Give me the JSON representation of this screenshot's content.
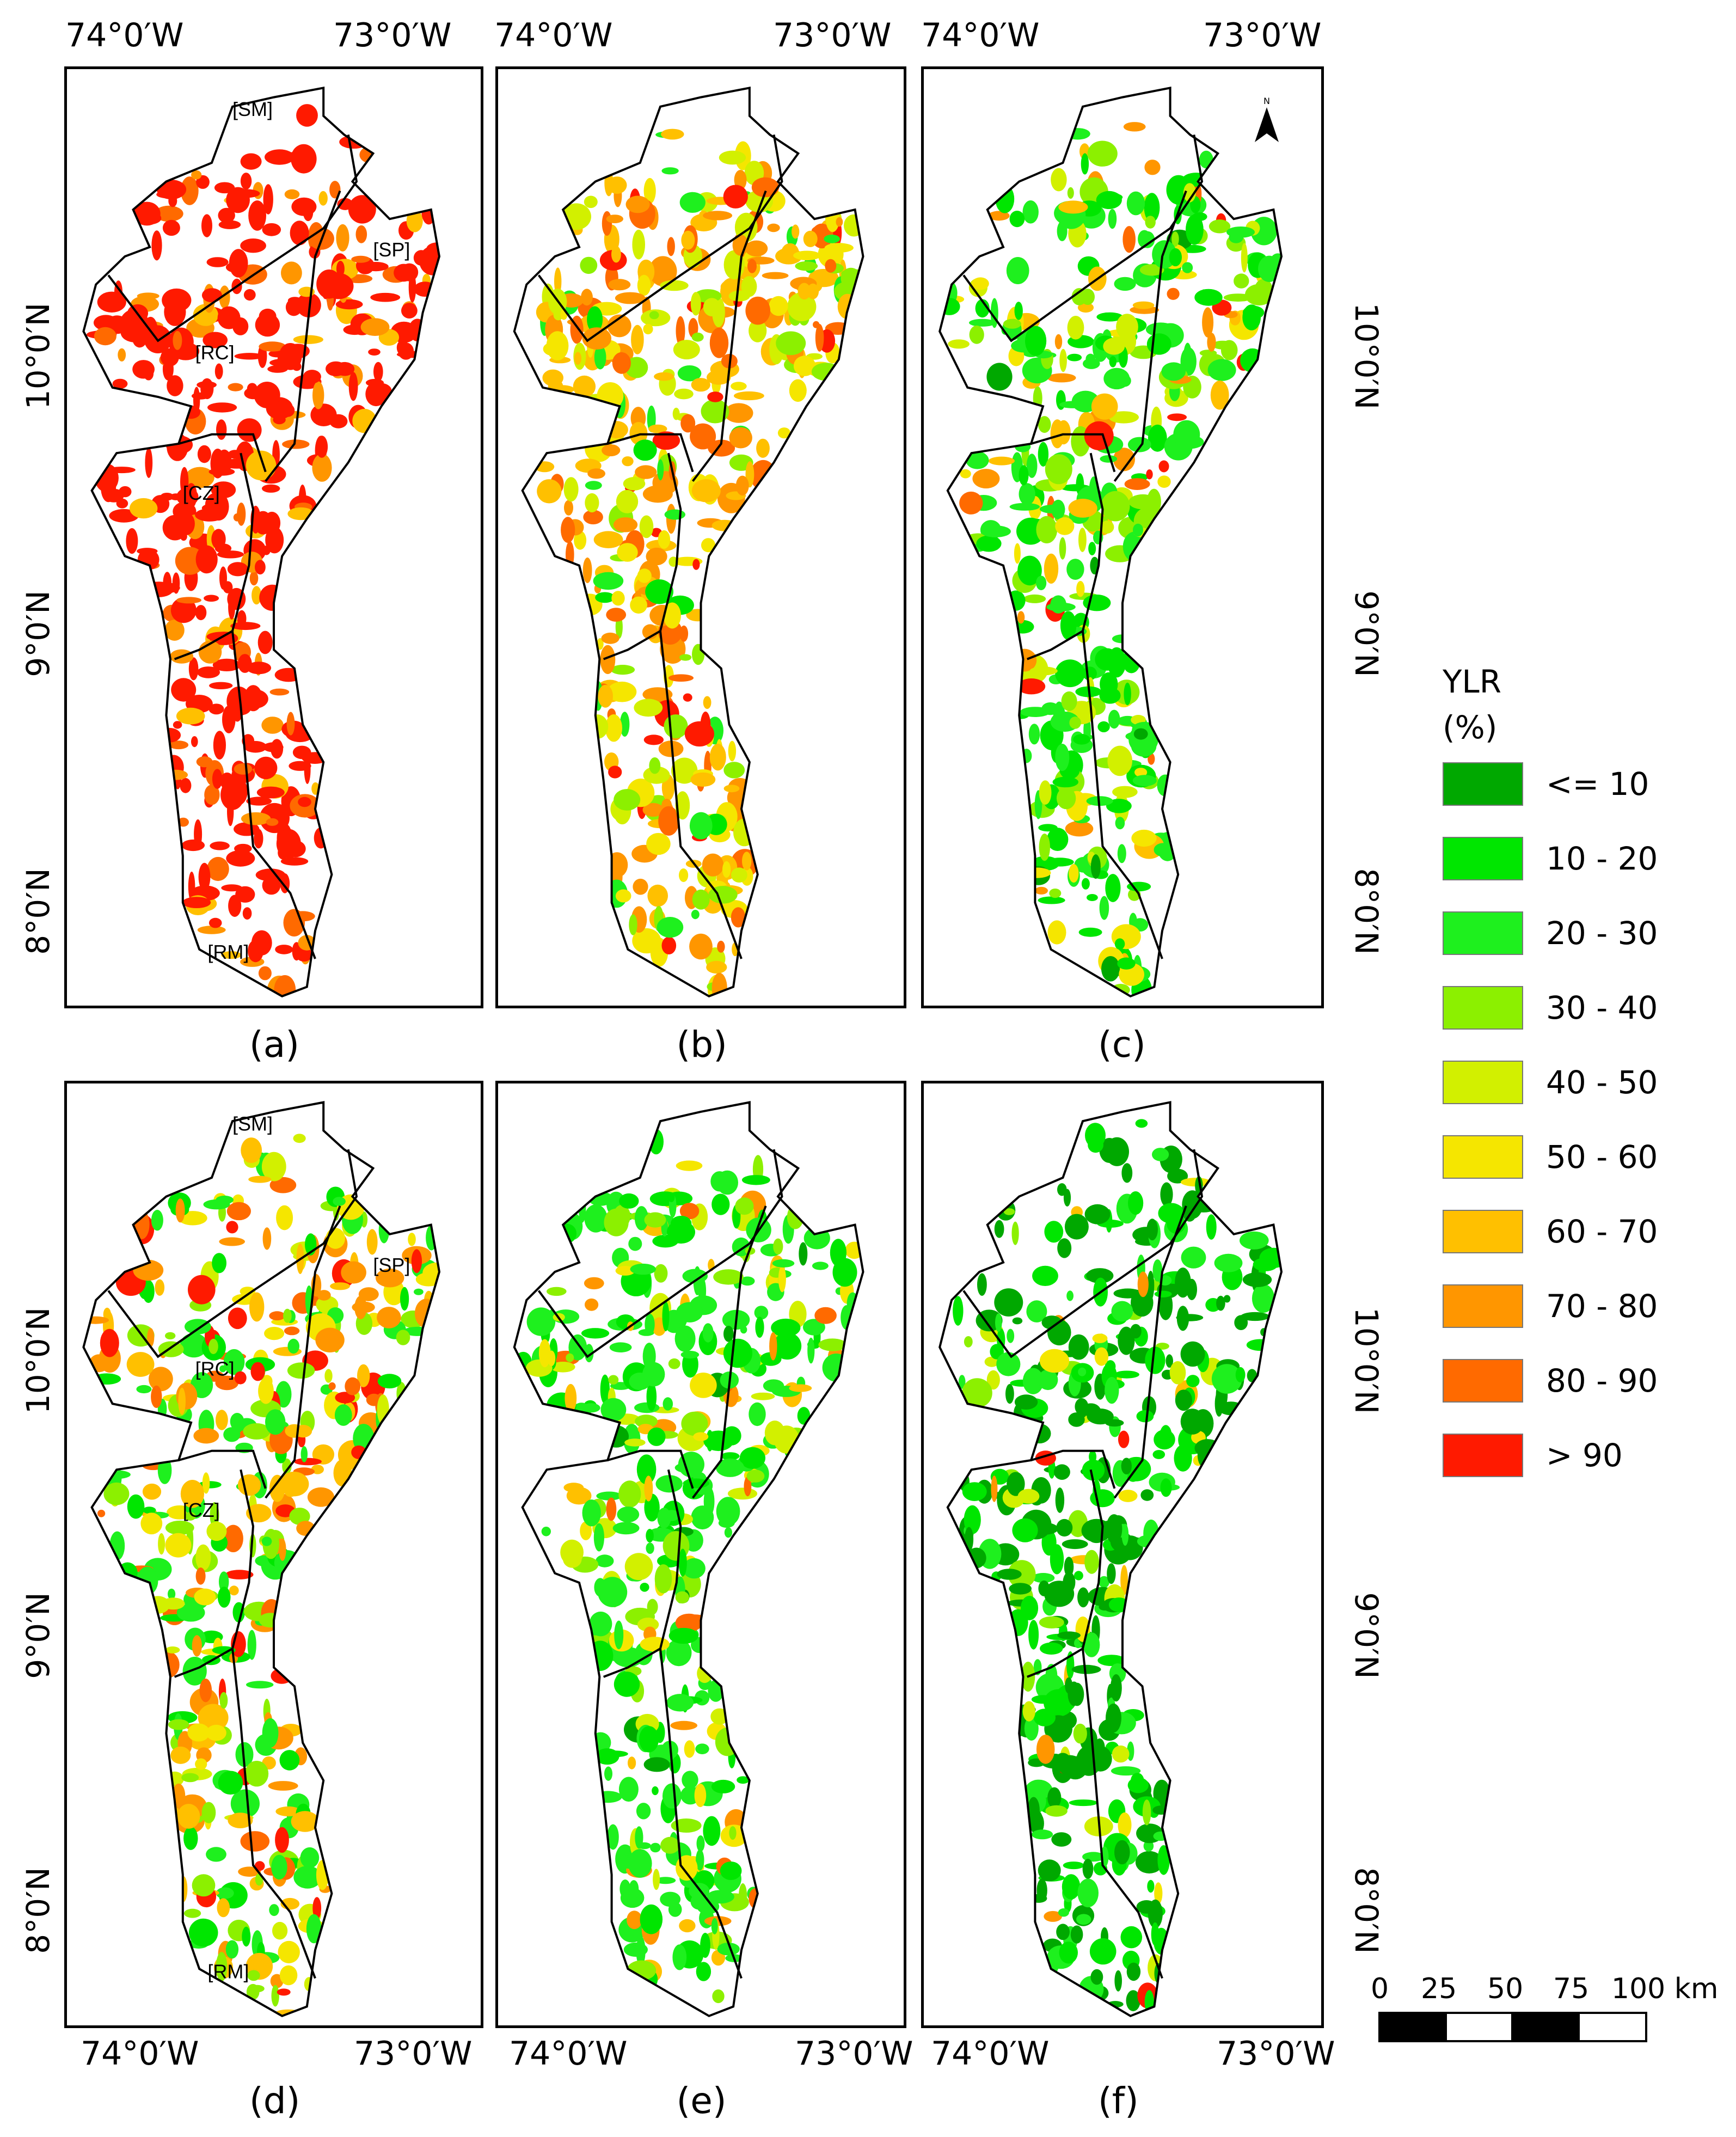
{
  "panels": [
    {
      "id": "a",
      "caption": "(a)",
      "tint": ">90",
      "regions": [
        "[SM]",
        "[SP]",
        "[RC]",
        "[CZ]",
        "[RM]"
      ]
    },
    {
      "id": "b",
      "caption": "(b)",
      "tint": "60-70",
      "regions": []
    },
    {
      "id": "c",
      "caption": "(c)",
      "tint": "20-30",
      "regions": []
    },
    {
      "id": "d",
      "caption": "(d)",
      "tint": "mixed",
      "regions": [
        "[SM]",
        "[SP]",
        "[RC]",
        "[CZ]",
        "[RM]"
      ]
    },
    {
      "id": "e",
      "caption": "(e)",
      "tint": "20-30",
      "regions": []
    },
    {
      "id": "f",
      "caption": "(f)",
      "tint": "<=10",
      "regions": []
    }
  ],
  "axes": {
    "lon_labels": [
      "74°0′W",
      "73°0′W"
    ],
    "lat_labels": [
      "10°0′N",
      "9°0′N",
      "8°0′N"
    ]
  },
  "legend": {
    "title_line1": "YLR",
    "title_line2": "(%)",
    "classes": [
      {
        "label": "<= 10",
        "color": "#00a800"
      },
      {
        "label": "10 - 20",
        "color": "#00e600"
      },
      {
        "label": "20 - 30",
        "color": "#1ef01e"
      },
      {
        "label": "30 - 40",
        "color": "#8cf000"
      },
      {
        "label": "40 - 50",
        "color": "#d2f000"
      },
      {
        "label": "50 - 60",
        "color": "#f5e600"
      },
      {
        "label": "60 - 70",
        "color": "#ffc000"
      },
      {
        "label": "70 - 80",
        "color": "#ff9600"
      },
      {
        "label": "80 - 90",
        "color": "#ff6a00"
      },
      {
        "label": "> 90",
        "color": "#ff1a00"
      }
    ]
  },
  "scalebar": {
    "ticks": [
      "0",
      "25",
      "50",
      "75",
      "100 km"
    ]
  },
  "north_arrow": {
    "letter": "N",
    "icon": "north-arrow-icon"
  }
}
